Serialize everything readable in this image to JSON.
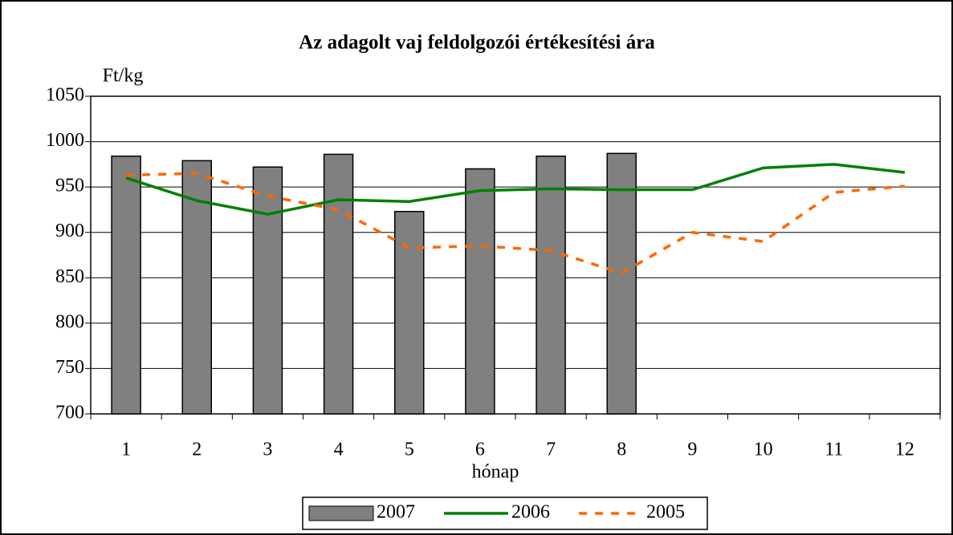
{
  "chart_data": {
    "type": "bar",
    "title": "Az adagolt vaj feldolgozói értékesítési ára",
    "y_label": "Ft/kg",
    "x_label": "hónap",
    "categories": [
      "1",
      "2",
      "3",
      "4",
      "5",
      "6",
      "7",
      "8",
      "9",
      "10",
      "11",
      "12"
    ],
    "series": [
      {
        "name": "2007",
        "type": "bar",
        "color": "#808080",
        "values": [
          984,
          979,
          972,
          986,
          923,
          970,
          984,
          987,
          null,
          null,
          null,
          null
        ]
      },
      {
        "name": "2006",
        "type": "line",
        "color": "#008000",
        "values": [
          960,
          935,
          920,
          936,
          934,
          946,
          948,
          947,
          947,
          971,
          975,
          966
        ]
      },
      {
        "name": "2005",
        "type": "line",
        "dash": true,
        "color": "#ff6600",
        "values": [
          963,
          965,
          940,
          925,
          883,
          885,
          880,
          855,
          900,
          890,
          944,
          951
        ]
      }
    ],
    "ylim": [
      700,
      1050
    ],
    "yticks": [
      700,
      750,
      800,
      850,
      900,
      950,
      1000,
      1050
    ],
    "grid": true,
    "legend": "bottom"
  }
}
